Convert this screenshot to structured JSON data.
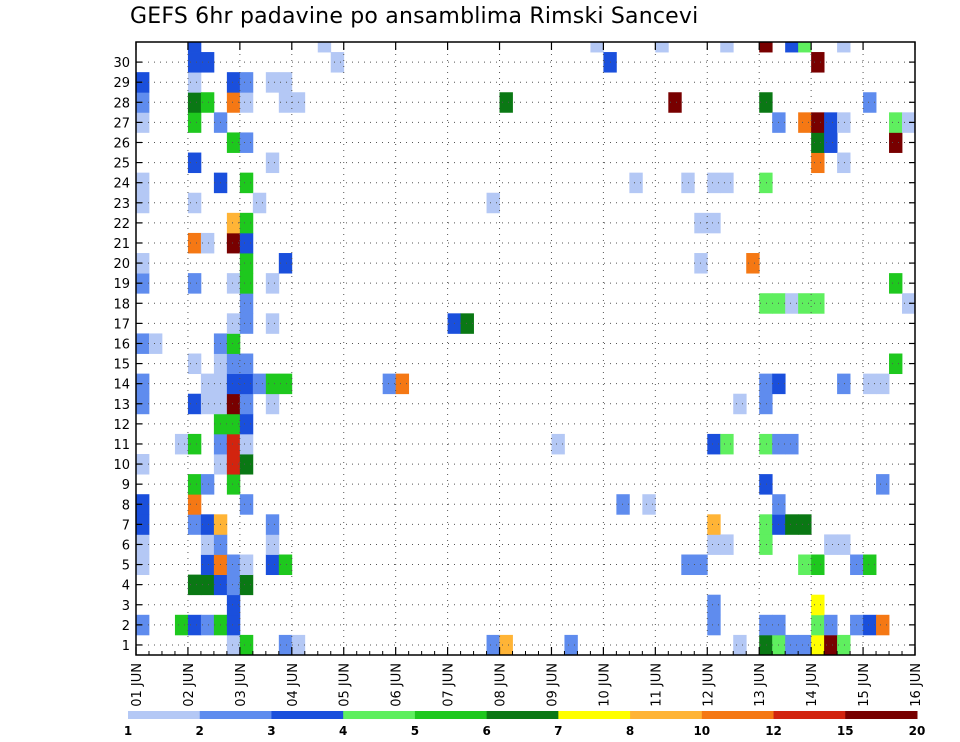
{
  "chart_data": {
    "type": "heatmap",
    "title": "GEFS 6hr padavine po ansamblima Rimski Sancevi",
    "xlabel": "",
    "ylabel": "",
    "x_tick_labels": [
      "01 JUN",
      "02 JUN",
      "03 JUN",
      "04 JUN",
      "05 JUN",
      "06 JUN",
      "07 JUN",
      "08 JUN",
      "09 JUN",
      "10 JUN",
      "11 JUN",
      "12 JUN",
      "13 JUN",
      "14 JUN",
      "15 JUN",
      "16 JUN"
    ],
    "y_tick_labels": [
      "1",
      "2",
      "3",
      "4",
      "5",
      "6",
      "7",
      "8",
      "9",
      "10",
      "11",
      "12",
      "13",
      "14",
      "15",
      "16",
      "17",
      "18",
      "19",
      "20",
      "21",
      "22",
      "23",
      "24",
      "25",
      "26",
      "27",
      "28",
      "29",
      "30"
    ],
    "y_range": [
      0,
      30
    ],
    "x_range": [
      0,
      60
    ],
    "grid": true,
    "colorbar": {
      "labels": [
        "1",
        "2",
        "3",
        "4",
        "5",
        "6",
        "7",
        "8",
        "10",
        "12",
        "15",
        "20"
      ],
      "colors": [
        "#b4c8f5",
        "#5f8cee",
        "#1a4fdc",
        "#5fef5f",
        "#1ec81e",
        "#0a7814",
        "#ffff00",
        "#ffb436",
        "#f57814",
        "#d2240f",
        "#780000"
      ]
    },
    "cells": [
      [
        0,
        1,
        2
      ],
      [
        0,
        4,
        1
      ],
      [
        0,
        5,
        1
      ],
      [
        0,
        6,
        3
      ],
      [
        0,
        7,
        3
      ],
      [
        0,
        9,
        1
      ],
      [
        0,
        12,
        2
      ],
      [
        0,
        13,
        2
      ],
      [
        0,
        15,
        2
      ],
      [
        0,
        18,
        2
      ],
      [
        0,
        19,
        1
      ],
      [
        0,
        22,
        1
      ],
      [
        0,
        23,
        1
      ],
      [
        0,
        26,
        1
      ],
      [
        0,
        27,
        2
      ],
      [
        0,
        28,
        3
      ],
      [
        1,
        15,
        1
      ],
      [
        3,
        1,
        5
      ],
      [
        3,
        10,
        1
      ],
      [
        4,
        1,
        3
      ],
      [
        4,
        3,
        6
      ],
      [
        4,
        6,
        2
      ],
      [
        4,
        7,
        9
      ],
      [
        4,
        8,
        5
      ],
      [
        4,
        10,
        5
      ],
      [
        4,
        12,
        3
      ],
      [
        4,
        14,
        1
      ],
      [
        4,
        18,
        2
      ],
      [
        4,
        20,
        9
      ],
      [
        4,
        22,
        1
      ],
      [
        4,
        24,
        3
      ],
      [
        4,
        26,
        5
      ],
      [
        4,
        27,
        6
      ],
      [
        4,
        28,
        1
      ],
      [
        4,
        29,
        3
      ],
      [
        4,
        30,
        3
      ],
      [
        5,
        1,
        2
      ],
      [
        5,
        3,
        6
      ],
      [
        5,
        4,
        3
      ],
      [
        5,
        5,
        1
      ],
      [
        5,
        6,
        3
      ],
      [
        5,
        8,
        2
      ],
      [
        5,
        12,
        1
      ],
      [
        5,
        13,
        1
      ],
      [
        5,
        20,
        1
      ],
      [
        5,
        27,
        5
      ],
      [
        5,
        29,
        3
      ],
      [
        6,
        1,
        5
      ],
      [
        6,
        3,
        3
      ],
      [
        6,
        4,
        9
      ],
      [
        6,
        5,
        2
      ],
      [
        6,
        6,
        8
      ],
      [
        6,
        9,
        1
      ],
      [
        6,
        10,
        2
      ],
      [
        6,
        11,
        5
      ],
      [
        6,
        12,
        1
      ],
      [
        6,
        13,
        1
      ],
      [
        6,
        14,
        1
      ],
      [
        6,
        15,
        2
      ],
      [
        6,
        23,
        3
      ],
      [
        6,
        26,
        2
      ],
      [
        7,
        0,
        1
      ],
      [
        7,
        1,
        3
      ],
      [
        7,
        2,
        3
      ],
      [
        7,
        3,
        2
      ],
      [
        7,
        4,
        2
      ],
      [
        7,
        8,
        5
      ],
      [
        7,
        9,
        10
      ],
      [
        7,
        10,
        10
      ],
      [
        7,
        11,
        5
      ],
      [
        7,
        12,
        11
      ],
      [
        7,
        13,
        3
      ],
      [
        7,
        14,
        2
      ],
      [
        7,
        15,
        5
      ],
      [
        7,
        16,
        1
      ],
      [
        7,
        18,
        1
      ],
      [
        7,
        20,
        11
      ],
      [
        7,
        21,
        8
      ],
      [
        7,
        25,
        5
      ],
      [
        7,
        27,
        9
      ],
      [
        7,
        28,
        3
      ],
      [
        8,
        0,
        5
      ],
      [
        8,
        3,
        6
      ],
      [
        8,
        4,
        1
      ],
      [
        8,
        7,
        2
      ],
      [
        8,
        9,
        6
      ],
      [
        8,
        10,
        1
      ],
      [
        8,
        11,
        3
      ],
      [
        8,
        12,
        2
      ],
      [
        8,
        13,
        3
      ],
      [
        8,
        14,
        2
      ],
      [
        8,
        16,
        2
      ],
      [
        8,
        17,
        2
      ],
      [
        8,
        18,
        5
      ],
      [
        8,
        19,
        5
      ],
      [
        8,
        20,
        3
      ],
      [
        8,
        21,
        5
      ],
      [
        8,
        23,
        5
      ],
      [
        8,
        25,
        2
      ],
      [
        8,
        27,
        1
      ],
      [
        8,
        28,
        2
      ],
      [
        9,
        13,
        2
      ],
      [
        9,
        22,
        1
      ],
      [
        10,
        4,
        3
      ],
      [
        10,
        5,
        1
      ],
      [
        10,
        6,
        2
      ],
      [
        10,
        12,
        1
      ],
      [
        10,
        13,
        5
      ],
      [
        10,
        16,
        1
      ],
      [
        10,
        18,
        1
      ],
      [
        10,
        24,
        1
      ],
      [
        10,
        28,
        1
      ],
      [
        11,
        0,
        2
      ],
      [
        11,
        4,
        5
      ],
      [
        11,
        13,
        5
      ],
      [
        11,
        19,
        3
      ],
      [
        11,
        27,
        1
      ],
      [
        11,
        28,
        1
      ],
      [
        12,
        0,
        1
      ],
      [
        12,
        27,
        1
      ],
      [
        14,
        30,
        1
      ],
      [
        15,
        29,
        1
      ],
      [
        19,
        13,
        2
      ],
      [
        20,
        13,
        9
      ],
      [
        24,
        16,
        3
      ],
      [
        25,
        16,
        6
      ],
      [
        27,
        0,
        2
      ],
      [
        27,
        22,
        1
      ],
      [
        28,
        0,
        8
      ],
      [
        28,
        27,
        6
      ],
      [
        32,
        10,
        1
      ],
      [
        33,
        0,
        2
      ],
      [
        35,
        30,
        1
      ],
      [
        36,
        29,
        3
      ],
      [
        37,
        7,
        2
      ],
      [
        38,
        23,
        1
      ],
      [
        39,
        7,
        1
      ],
      [
        40,
        30,
        1
      ],
      [
        41,
        27,
        11
      ],
      [
        42,
        4,
        2
      ],
      [
        42,
        23,
        1
      ],
      [
        43,
        4,
        2
      ],
      [
        43,
        19,
        1
      ],
      [
        43,
        21,
        1
      ],
      [
        44,
        1,
        2
      ],
      [
        44,
        2,
        2
      ],
      [
        44,
        5,
        1
      ],
      [
        44,
        6,
        8
      ],
      [
        44,
        10,
        3
      ],
      [
        44,
        21,
        1
      ],
      [
        44,
        23,
        1
      ],
      [
        45,
        5,
        1
      ],
      [
        45,
        10,
        4
      ],
      [
        45,
        23,
        1
      ],
      [
        45,
        30,
        1
      ],
      [
        46,
        0,
        1
      ],
      [
        46,
        12,
        1
      ],
      [
        47,
        19,
        9
      ],
      [
        48,
        0,
        6
      ],
      [
        48,
        1,
        2
      ],
      [
        48,
        5,
        4
      ],
      [
        48,
        6,
        4
      ],
      [
        48,
        8,
        3
      ],
      [
        48,
        10,
        4
      ],
      [
        48,
        12,
        2
      ],
      [
        48,
        13,
        2
      ],
      [
        48,
        17,
        4
      ],
      [
        48,
        23,
        4
      ],
      [
        48,
        27,
        6
      ],
      [
        48,
        30,
        11
      ],
      [
        49,
        0,
        4
      ],
      [
        49,
        1,
        2
      ],
      [
        49,
        6,
        3
      ],
      [
        49,
        7,
        2
      ],
      [
        49,
        10,
        2
      ],
      [
        49,
        13,
        3
      ],
      [
        49,
        17,
        4
      ],
      [
        49,
        26,
        2
      ],
      [
        50,
        0,
        2
      ],
      [
        50,
        6,
        6
      ],
      [
        50,
        10,
        2
      ],
      [
        50,
        17,
        1
      ],
      [
        50,
        30,
        3
      ],
      [
        51,
        0,
        2
      ],
      [
        51,
        4,
        4
      ],
      [
        51,
        6,
        6
      ],
      [
        51,
        17,
        4
      ],
      [
        51,
        26,
        9
      ],
      [
        51,
        30,
        4
      ],
      [
        52,
        0,
        7
      ],
      [
        52,
        1,
        4
      ],
      [
        52,
        2,
        7
      ],
      [
        52,
        4,
        5
      ],
      [
        52,
        17,
        4
      ],
      [
        52,
        24,
        9
      ],
      [
        52,
        25,
        6
      ],
      [
        52,
        26,
        11
      ],
      [
        52,
        29,
        11
      ],
      [
        53,
        0,
        11
      ],
      [
        53,
        1,
        2
      ],
      [
        53,
        5,
        1
      ],
      [
        53,
        25,
        3
      ],
      [
        53,
        26,
        3
      ],
      [
        54,
        0,
        4
      ],
      [
        54,
        5,
        1
      ],
      [
        54,
        13,
        2
      ],
      [
        54,
        24,
        1
      ],
      [
        54,
        26,
        1
      ],
      [
        54,
        30,
        1
      ],
      [
        55,
        1,
        2
      ],
      [
        55,
        4,
        2
      ],
      [
        56,
        1,
        3
      ],
      [
        56,
        4,
        5
      ],
      [
        56,
        13,
        1
      ],
      [
        56,
        27,
        2
      ],
      [
        57,
        1,
        9
      ],
      [
        57,
        8,
        2
      ],
      [
        57,
        13,
        1
      ],
      [
        58,
        14,
        5
      ],
      [
        58,
        18,
        5
      ],
      [
        58,
        25,
        11
      ],
      [
        58,
        26,
        4
      ],
      [
        59,
        17,
        1
      ],
      [
        59,
        26,
        1
      ],
      [
        60,
        27,
        7
      ],
      [
        61,
        1,
        1
      ],
      [
        61,
        5,
        1
      ],
      [
        62,
        1,
        9
      ],
      [
        62,
        5,
        2
      ],
      [
        62,
        9,
        11
      ],
      [
        62,
        10,
        1
      ],
      [
        63,
        0,
        1
      ],
      [
        63,
        10,
        10
      ],
      [
        63,
        12,
        1
      ],
      [
        63,
        14,
        6
      ],
      [
        63,
        15,
        2
      ],
      [
        63,
        19,
        2
      ],
      [
        64,
        7,
        10
      ],
      [
        64,
        8,
        3
      ],
      [
        64,
        9,
        4
      ],
      [
        64,
        15,
        3
      ],
      [
        65,
        9,
        5
      ],
      [
        65,
        15,
        4
      ],
      [
        66,
        10,
        1
      ],
      [
        66,
        28,
        1
      ],
      [
        67,
        10,
        8
      ],
      [
        67,
        15,
        1
      ],
      [
        68,
        13,
        1
      ],
      [
        68,
        28,
        4
      ]
    ]
  }
}
